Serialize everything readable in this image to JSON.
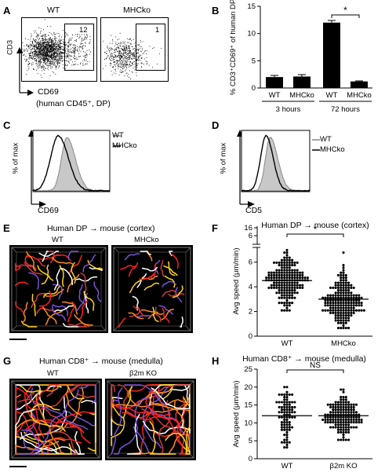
{
  "panels": {
    "A": {
      "label": "A",
      "left_title": "WT",
      "right_title": "MHCko",
      "left_gate_value": "12",
      "right_gate_value": "1",
      "y_axis": "CD3",
      "x_axis": "CD69",
      "x_note": "(human CD45⁺, DP)"
    },
    "B": {
      "label": "B"
    },
    "C": {
      "label": "C",
      "legend": [
        "WT",
        "MHCko"
      ],
      "y_axis": "% of max",
      "x_axis": "CD69"
    },
    "D": {
      "label": "D",
      "legend": [
        "WT",
        "MHCko"
      ],
      "y_axis": "% of max",
      "x_axis": "CD5"
    },
    "E": {
      "label": "E",
      "title": "Human DP → mouse (cortex)",
      "left_title": "WT",
      "right_title": "MHCko"
    },
    "F": {
      "label": "F"
    },
    "G": {
      "label": "G",
      "title": "Human CD8⁺ → mouse (medulla)",
      "left_title": "WT",
      "right_title": "β2m KO"
    },
    "H": {
      "label": "H"
    }
  },
  "chart_data": [
    {
      "panel": "B",
      "type": "bar",
      "categories": [
        "WT",
        "MHCko",
        "WT",
        "MHCko"
      ],
      "groups": [
        "3 hours",
        "72 hours"
      ],
      "group_of_category": [
        0,
        0,
        1,
        1
      ],
      "values": [
        2.0,
        2.1,
        12.0,
        1.2
      ],
      "errors": [
        0.3,
        0.35,
        0.4,
        0.1
      ],
      "ylabel": "% CD3⁺CD69⁺ of human DP",
      "ylim": [
        0,
        15
      ],
      "yticks": [
        0,
        5,
        10,
        15
      ],
      "significance": {
        "between": [
          2,
          3
        ],
        "label": "*"
      }
    },
    {
      "panel": "F",
      "type": "scatter",
      "title": "Human DP → mouse (cortex)",
      "categories": [
        "WT",
        "MHCko"
      ],
      "means": [
        4.5,
        3.0
      ],
      "ylabel": "Avg speed (μm/min)",
      "ylim": [
        0,
        16
      ],
      "yticks_lower": [
        0,
        2,
        4,
        6
      ],
      "yticks_upper": [
        6,
        16
      ],
      "axis_break": true,
      "significance": {
        "between": [
          0,
          1
        ],
        "label": "*"
      },
      "spread": [
        {
          "mean": 4.5,
          "sd": 1.0,
          "n": 190,
          "min": 2.0,
          "max": 7.0
        },
        {
          "mean": 3.0,
          "sd": 1.1,
          "n": 190,
          "min": 0.6,
          "max": 7.0
        }
      ]
    },
    {
      "panel": "H",
      "type": "scatter",
      "title": "Human CD8⁺ → mouse (medulla)",
      "categories": [
        "WT",
        "β2m KO"
      ],
      "means": [
        12.0,
        12.0
      ],
      "ylabel": "Avg speed (μm/min)",
      "ylim": [
        0,
        25
      ],
      "yticks": [
        0,
        5,
        10,
        15,
        20,
        25
      ],
      "significance": {
        "between": [
          0,
          1
        ],
        "label": "NS"
      },
      "spread": [
        {
          "mean": 12.0,
          "sd": 3.8,
          "n": 85,
          "min": 3.5,
          "max": 23.5
        },
        {
          "mean": 12.0,
          "sd": 3.0,
          "n": 150,
          "min": 5.0,
          "max": 19.5
        }
      ]
    }
  ],
  "colors": {
    "track_colors": [
      "#ff2020",
      "#ffd21e",
      "#ff8c1a",
      "#7b52d6",
      "#ffffff",
      "#d23a3a"
    ],
    "hist_fill": "#c8c8c8",
    "hist_wt_line": "#888888",
    "hist_ko_line": "#000000",
    "bar_fill": "#000000",
    "movie_bg": "#000000"
  }
}
